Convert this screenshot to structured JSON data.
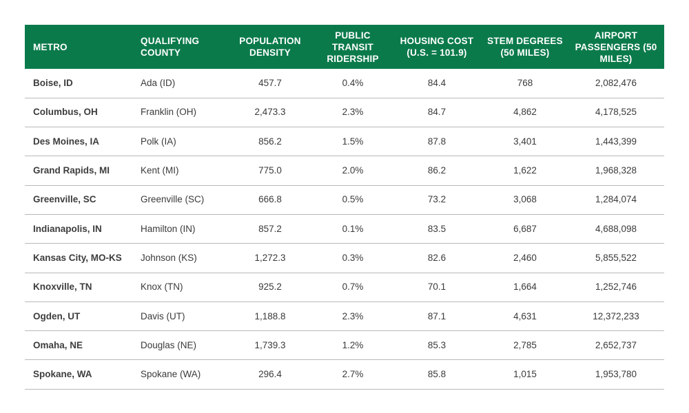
{
  "headers": {
    "metro": "METRO",
    "county": "QUALIFYING COUNTY",
    "density": "POPULATION DENSITY",
    "transit": "PUBLIC TRANSIT RIDERSHIP",
    "housing": "HOUSING COST (U.S. = 101.9)",
    "stem": "STEM DEGREES (50 MILES)",
    "airport": "AIRPORT PASSENGERS (50 MILES)"
  },
  "rows": [
    {
      "metro": "Boise, ID",
      "county": "Ada (ID)",
      "density": "457.7",
      "transit": "0.4%",
      "housing": "84.4",
      "stem": "768",
      "airport": "2,082,476"
    },
    {
      "metro": "Columbus, OH",
      "county": "Franklin (OH)",
      "density": "2,473.3",
      "transit": "2.3%",
      "housing": "84.7",
      "stem": "4,862",
      "airport": "4,178,525"
    },
    {
      "metro": "Des Moines, IA",
      "county": "Polk (IA)",
      "density": "856.2",
      "transit": "1.5%",
      "housing": "87.8",
      "stem": "3,401",
      "airport": "1,443,399"
    },
    {
      "metro": "Grand Rapids, MI",
      "county": "Kent (MI)",
      "density": "775.0",
      "transit": "2.0%",
      "housing": "86.2",
      "stem": "1,622",
      "airport": "1,968,328"
    },
    {
      "metro": "Greenville, SC",
      "county": "Greenville (SC)",
      "density": "666.8",
      "transit": "0.5%",
      "housing": "73.2",
      "stem": "3,068",
      "airport": "1,284,074"
    },
    {
      "metro": "Indianapolis, IN",
      "county": "Hamilton (IN)",
      "density": "857.2",
      "transit": "0.1%",
      "housing": "83.5",
      "stem": "6,687",
      "airport": "4,688,098"
    },
    {
      "metro": "Kansas City, MO-KS",
      "county": "Johnson (KS)",
      "density": "1,272.3",
      "transit": "0.3%",
      "housing": "82.6",
      "stem": "2,460",
      "airport": "5,855,522"
    },
    {
      "metro": "Knoxville, TN",
      "county": "Knox (TN)",
      "density": "925.2",
      "transit": "0.7%",
      "housing": "70.1",
      "stem": "1,664",
      "airport": "1,252,746"
    },
    {
      "metro": "Ogden, UT",
      "county": "Davis (UT)",
      "density": "1,188.8",
      "transit": "2.3%",
      "housing": "87.1",
      "stem": "4,631",
      "airport": "12,372,233"
    },
    {
      "metro": "Omaha, NE",
      "county": "Douglas (NE)",
      "density": "1,739.3",
      "transit": "1.2%",
      "housing": "85.3",
      "stem": "2,785",
      "airport": "2,652,737"
    },
    {
      "metro": "Spokane, WA",
      "county": "Spokane (WA)",
      "density": "296.4",
      "transit": "2.7%",
      "housing": "85.8",
      "stem": "1,015",
      "airport": "1,953,780"
    }
  ]
}
